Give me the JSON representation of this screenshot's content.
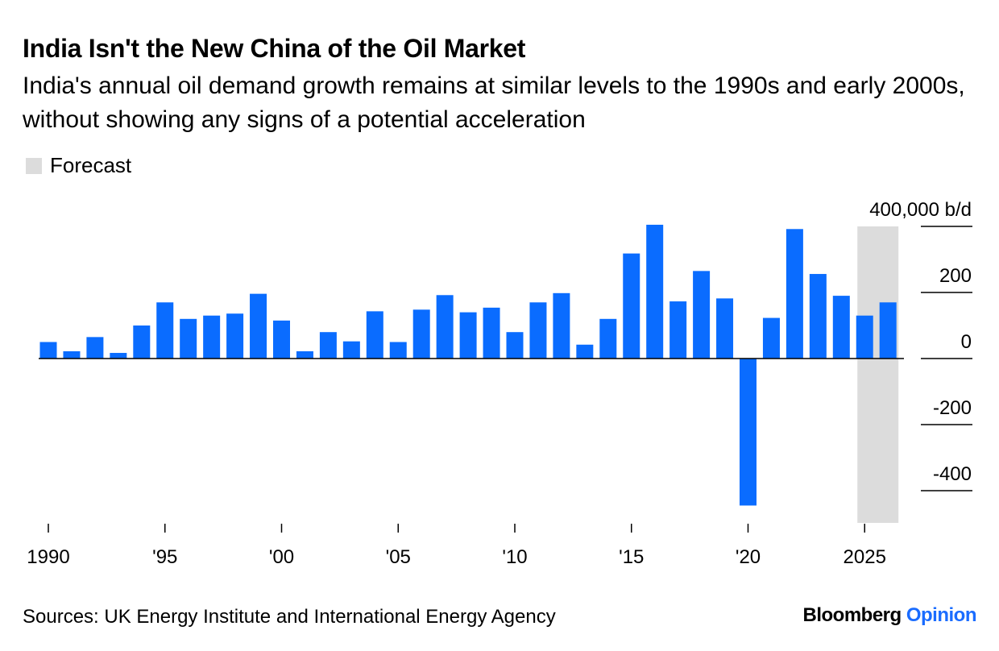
{
  "title": "India Isn't the New China of the Oil Market",
  "subtitle": "India's annual oil demand growth remains at similar levels to the 1990s and early 2000s, without showing any signs of a potential acceleration",
  "legend": {
    "forecast_label": "Forecast",
    "forecast_color": "#dcdcdc"
  },
  "source": "Sources: UK Energy Institute and International Energy Agency",
  "brand": {
    "name": "Bloomberg",
    "suffix": "Opinion",
    "suffix_color": "#1a6cff"
  },
  "colors": {
    "bar": "#0a6cff",
    "forecast_band": "#dcdcdc",
    "axis": "#000000"
  },
  "chart_data": {
    "type": "bar",
    "title": "India Isn't the New China of the Oil Market",
    "xlabel": "",
    "ylabel": "",
    "unit_label": "400,000 b/d",
    "ylim": [
      -500,
      400
    ],
    "y_ticks": [
      400,
      200,
      0,
      -200,
      -400
    ],
    "y_tick_labels": [
      "400,000 b/d",
      "200",
      "0",
      "-200",
      "-400"
    ],
    "x_ticks": [
      1990,
      1995,
      2000,
      2005,
      2010,
      2015,
      2020,
      2025
    ],
    "x_tick_labels": [
      "1990",
      "'95",
      "'00",
      "'05",
      "'10",
      "'15",
      "'20",
      "2025"
    ],
    "forecast_years": [
      2025,
      2026
    ],
    "grid": false,
    "legend_position": "top-left",
    "series": [
      {
        "x": [
          1990,
          1991,
          1992,
          1993,
          1994,
          1995,
          1996,
          1997,
          1998,
          1999,
          2000,
          2001,
          2002,
          2003,
          2004,
          2005,
          2006,
          2007,
          2008,
          2009,
          2010,
          2011,
          2012,
          2013,
          2014,
          2015,
          2016,
          2017,
          2018,
          2019,
          2020,
          2021,
          2022,
          2023,
          2024,
          2025,
          2026
        ],
        "values": [
          50,
          22,
          65,
          17,
          100,
          170,
          120,
          130,
          136,
          196,
          115,
          22,
          80,
          52,
          143,
          50,
          148,
          192,
          140,
          154,
          80,
          170,
          198,
          42,
          120,
          318,
          405,
          173,
          265,
          182,
          -445,
          123,
          392,
          256,
          190,
          130,
          170
        ]
      }
    ]
  }
}
